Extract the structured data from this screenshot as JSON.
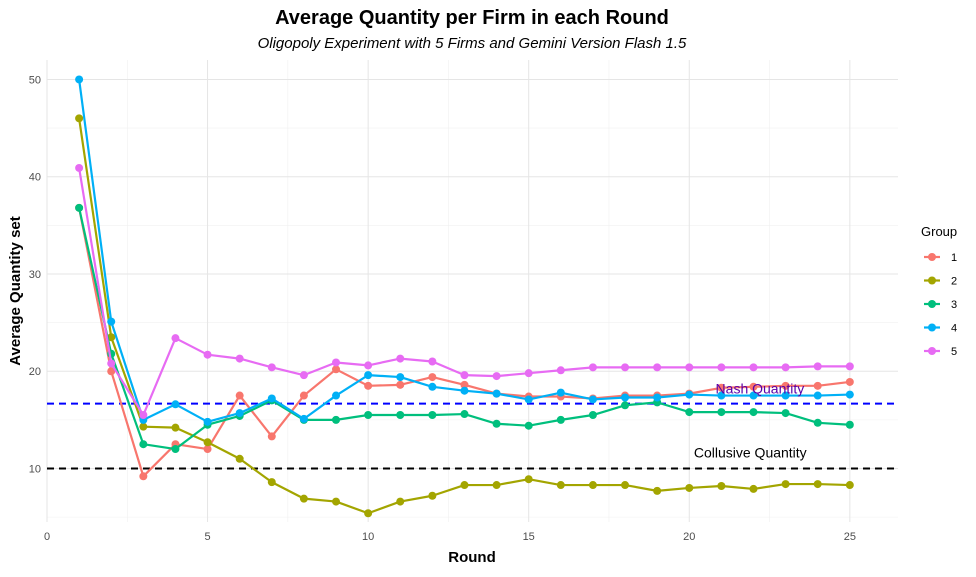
{
  "chart_data": {
    "type": "line",
    "title": "Average Quantity per Firm in each Round",
    "subtitle": "Oligopoly Experiment with 5 Firms and Gemini Version Flash 1.5",
    "xlabel": "Round",
    "ylabel": "Average Quantity set",
    "xlim": [
      0,
      26.5
    ],
    "ylim": [
      4.5,
      52
    ],
    "x_ticks": [
      0,
      5,
      10,
      15,
      20,
      25
    ],
    "y_ticks": [
      10,
      20,
      30,
      40,
      50
    ],
    "grid": true,
    "x": [
      1,
      2,
      3,
      4,
      5,
      6,
      7,
      8,
      9,
      10,
      11,
      12,
      13,
      14,
      15,
      16,
      17,
      18,
      19,
      20,
      21,
      22,
      23,
      24,
      25
    ],
    "legend": {
      "title": "Group",
      "position": "right"
    },
    "series": [
      {
        "name": "1",
        "color": "#F8766D",
        "values": [
          36.8,
          20.0,
          9.2,
          12.5,
          12.0,
          17.5,
          13.3,
          17.5,
          20.2,
          18.5,
          18.6,
          19.4,
          18.6,
          17.7,
          17.4,
          17.4,
          17.2,
          17.5,
          17.5,
          17.7,
          18.3,
          18.4,
          18.5,
          18.5,
          18.9
        ]
      },
      {
        "name": "2",
        "color": "#A3A500",
        "values": [
          46.0,
          23.5,
          14.3,
          14.2,
          12.7,
          11.0,
          8.6,
          6.9,
          6.6,
          5.4,
          6.6,
          7.2,
          8.3,
          8.3,
          8.9,
          8.3,
          8.3,
          8.3,
          7.7,
          8.0,
          8.2,
          7.9,
          8.4,
          8.4,
          8.3
        ]
      },
      {
        "name": "3",
        "color": "#00BF7D",
        "values": [
          36.8,
          21.8,
          12.5,
          12.0,
          14.5,
          15.4,
          17.0,
          15.0,
          15.0,
          15.5,
          15.5,
          15.5,
          15.6,
          14.6,
          14.4,
          15.0,
          15.5,
          16.5,
          16.8,
          15.8,
          15.8,
          15.8,
          15.7,
          14.7,
          14.5
        ]
      },
      {
        "name": "4",
        "color": "#00B0F6",
        "values": [
          50.0,
          25.1,
          15.0,
          16.6,
          14.8,
          15.7,
          17.2,
          15.1,
          17.5,
          19.6,
          19.4,
          18.4,
          18.0,
          17.7,
          17.1,
          17.8,
          17.1,
          17.3,
          17.3,
          17.6,
          17.5,
          17.5,
          17.5,
          17.5,
          17.6
        ]
      },
      {
        "name": "5",
        "color": "#E76BF3",
        "values": [
          40.9,
          20.8,
          15.5,
          23.4,
          21.7,
          21.3,
          20.4,
          19.6,
          20.9,
          20.6,
          21.3,
          21.0,
          19.6,
          19.5,
          19.8,
          20.1,
          20.4,
          20.4,
          20.4,
          20.4,
          20.4,
          20.4,
          20.4,
          20.5,
          20.5
        ]
      }
    ],
    "reference_lines": [
      {
        "label": "Nash Quantity",
        "y": 16.67,
        "color": "#0000FF",
        "text_color": "#5a00a8"
      },
      {
        "label": "Collusive Quantity",
        "y": 10.0,
        "color": "#000000",
        "text_color": "#000000"
      }
    ]
  }
}
